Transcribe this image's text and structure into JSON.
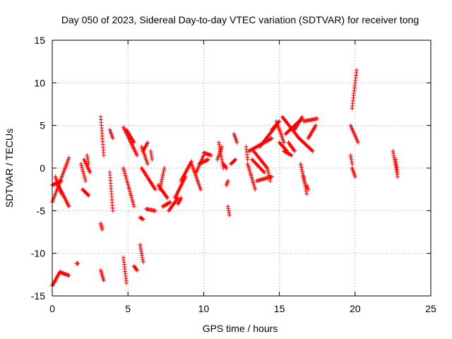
{
  "chart_data": {
    "type": "scatter",
    "title": "Day 050 of 2023, Sidereal Day-to-day VTEC variation (SDTVAR) for receiver tong",
    "xlabel": "GPS time / hours",
    "ylabel": "SDTVAR / TECUs",
    "xlim": [
      0,
      25
    ],
    "ylim": [
      -15,
      15
    ],
    "xticks": [
      0,
      5,
      10,
      15,
      20,
      25
    ],
    "yticks": [
      -15,
      -10,
      -5,
      0,
      5,
      10,
      15
    ],
    "grid": true,
    "marker": "+",
    "color": "#ff0000",
    "segments": [
      [
        0.0,
        -2.0,
        0.6,
        -1.5
      ],
      [
        0.0,
        -4.0,
        1.1,
        1.2
      ],
      [
        0.4,
        -2.0,
        1.1,
        -4.5
      ],
      [
        0.2,
        -1.0,
        0.6,
        -3.0
      ],
      [
        0.0,
        -13.8,
        0.5,
        -12.2
      ],
      [
        0.5,
        -12.2,
        1.1,
        -12.6
      ],
      [
        1.6,
        -11.2,
        1.7,
        -11.2
      ],
      [
        1.9,
        0.5,
        2.2,
        -1.5
      ],
      [
        2.0,
        -2.5,
        2.4,
        -3.2
      ],
      [
        2.1,
        1.0,
        2.5,
        -0.5
      ],
      [
        2.3,
        1.5,
        2.4,
        0.5
      ],
      [
        3.2,
        6.0,
        3.4,
        1.5
      ],
      [
        3.2,
        -12.0,
        3.4,
        -13.2
      ],
      [
        3.2,
        -6.5,
        3.3,
        -7.2
      ],
      [
        3.8,
        -0.5,
        4.0,
        -5.0
      ],
      [
        3.8,
        4.5,
        4.0,
        3.5
      ],
      [
        4.7,
        0.0,
        5.4,
        -4.5
      ],
      [
        4.7,
        4.8,
        5.6,
        1.5
      ],
      [
        4.9,
        4.5,
        5.4,
        3.0
      ],
      [
        4.7,
        -10.5,
        4.9,
        -13.5
      ],
      [
        5.4,
        -11.5,
        5.6,
        -12.0
      ],
      [
        5.8,
        -9.0,
        6.0,
        -11.0
      ],
      [
        5.8,
        -5.8,
        6.0,
        -6.0
      ],
      [
        5.9,
        2.5,
        6.3,
        0.5
      ],
      [
        5.9,
        0.0,
        6.8,
        -2.5
      ],
      [
        6.0,
        2.0,
        6.3,
        3.0
      ],
      [
        6.2,
        -4.8,
        6.8,
        -5.0
      ],
      [
        6.5,
        2.0,
        6.6,
        1.0
      ],
      [
        7.0,
        -2.0,
        7.6,
        -3.5
      ],
      [
        7.1,
        -2.5,
        7.4,
        0.0
      ],
      [
        7.3,
        -4.5,
        7.8,
        -4.0
      ],
      [
        7.7,
        -5.0,
        8.3,
        -3.5
      ],
      [
        8.1,
        -3.5,
        8.8,
        -1.0
      ],
      [
        8.3,
        -4.2,
        8.5,
        -3.5
      ],
      [
        8.5,
        -1.5,
        9.2,
        0.8
      ],
      [
        9.2,
        0.5,
        9.8,
        -2.5
      ],
      [
        9.5,
        -0.5,
        10.0,
        1.5
      ],
      [
        10.0,
        1.8,
        10.5,
        1.5
      ],
      [
        9.7,
        0.5,
        10.3,
        1.0
      ],
      [
        11.0,
        3.0,
        11.3,
        0.0
      ],
      [
        10.9,
        1.0,
        11.2,
        2.5
      ],
      [
        11.3,
        0.5,
        11.5,
        0.0
      ],
      [
        11.5,
        -2.0,
        11.6,
        -1.5
      ],
      [
        11.6,
        -4.5,
        11.7,
        -5.5
      ],
      [
        11.8,
        0.5,
        12.1,
        1.0
      ],
      [
        12.0,
        4.0,
        12.2,
        3.0
      ],
      [
        12.8,
        2.5,
        12.9,
        1.0
      ],
      [
        12.9,
        0.5,
        13.4,
        -2.5
      ],
      [
        13.0,
        2.0,
        14.5,
        3.5
      ],
      [
        13.2,
        1.0,
        14.0,
        -0.5
      ],
      [
        13.3,
        2.0,
        14.2,
        0.0
      ],
      [
        13.5,
        -1.5,
        14.5,
        -1.0
      ],
      [
        13.7,
        2.5,
        14.8,
        5.0
      ],
      [
        14.5,
        4.5,
        15.0,
        5.5
      ],
      [
        14.2,
        0.0,
        14.4,
        -1.5
      ],
      [
        14.8,
        5.5,
        15.3,
        3.0
      ],
      [
        15.0,
        3.0,
        15.5,
        2.0
      ],
      [
        15.2,
        6.0,
        16.3,
        3.5
      ],
      [
        15.4,
        4.0,
        16.5,
        5.8
      ],
      [
        15.3,
        2.0,
        15.8,
        1.5
      ],
      [
        15.6,
        3.0,
        16.0,
        2.0
      ],
      [
        16.0,
        4.5,
        16.5,
        6.0
      ],
      [
        16.3,
        3.5,
        17.2,
        2.0
      ],
      [
        16.6,
        5.5,
        17.5,
        5.8
      ],
      [
        16.9,
        3.5,
        17.4,
        5.0
      ],
      [
        16.4,
        0.5,
        16.7,
        -2.0
      ],
      [
        16.6,
        -1.0,
        16.8,
        -3.0
      ],
      [
        16.8,
        -2.0,
        16.9,
        -2.5
      ],
      [
        19.7,
        5.0,
        20.2,
        3.0
      ],
      [
        19.8,
        7.0,
        20.1,
        11.5
      ],
      [
        19.7,
        1.5,
        19.8,
        0.5
      ],
      [
        19.8,
        0.0,
        20.0,
        -1.0
      ],
      [
        22.5,
        2.0,
        22.8,
        -1.0
      ],
      [
        22.7,
        1.0,
        22.8,
        -0.5
      ]
    ]
  }
}
